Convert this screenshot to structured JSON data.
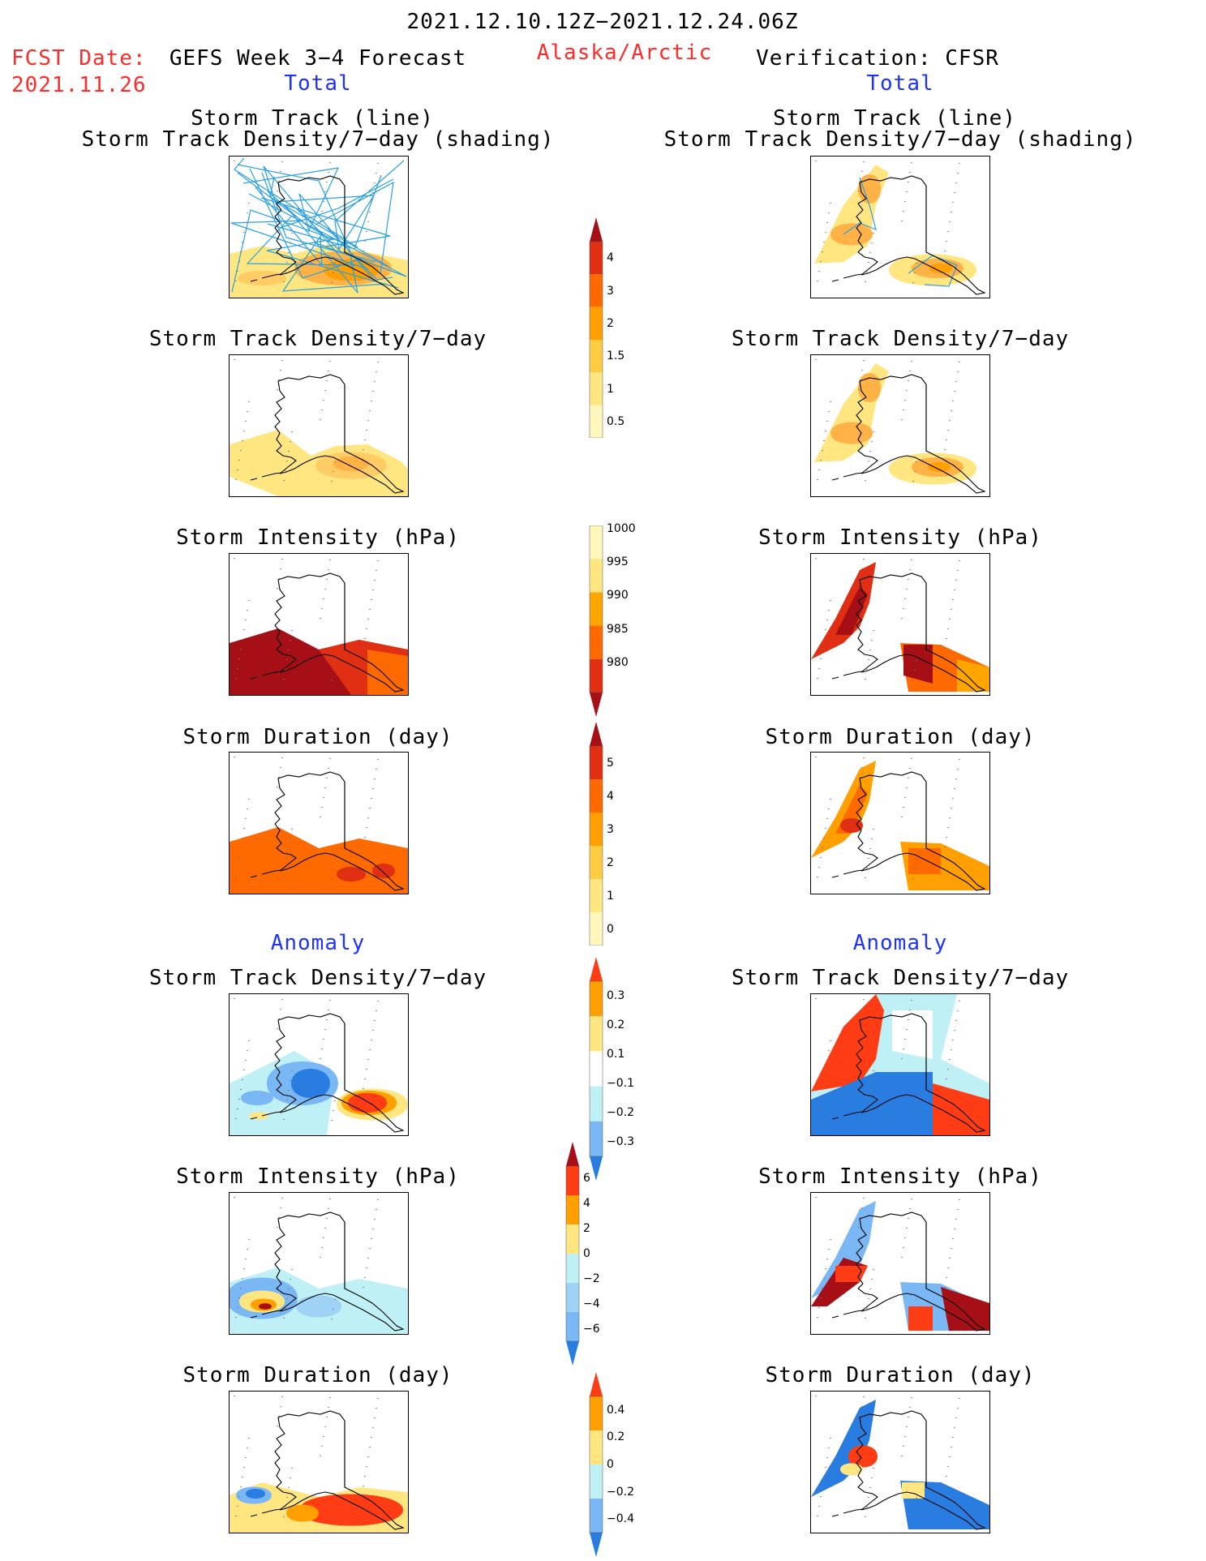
{
  "header": {
    "period": "2021.12.10.12Z−2021.12.24.06Z",
    "fcst_label": "FCST Date:",
    "fcst_date": "2021.11.26",
    "left_title": "GEFS Week 3−4 Forecast",
    "region": "Alaska/Arctic",
    "right_title": "Verification: CFSR"
  },
  "sections": {
    "total": "Total",
    "anomaly": "Anomaly"
  },
  "panel_titles": {
    "track_line": "Storm Track (line)",
    "track_shading": "Storm Track Density/7−day (shading)",
    "density": "Storm Track Density/7−day",
    "intensity": "Storm Intensity (hPa)",
    "duration": "Storm Duration (day)"
  },
  "colorbars": [
    {
      "id": "density_total",
      "ticks": [
        "4",
        "3",
        "2",
        "1.5",
        "1",
        "0.5"
      ],
      "colors": [
        "#a50f15",
        "#e02f12",
        "#ff6a00",
        "#ff9f00",
        "#ffcc44",
        "#ffe680",
        "#fff7bc"
      ],
      "extend": "max"
    },
    {
      "id": "intensity_total",
      "ticks": [
        "1000",
        "995",
        "990",
        "985",
        "980"
      ],
      "colors": [
        "#fff7bc",
        "#ffe680",
        "#ffa500",
        "#ff6a00",
        "#e02f12",
        "#a50f15"
      ],
      "extend": "min"
    },
    {
      "id": "duration_total",
      "ticks": [
        "5",
        "4",
        "3",
        "2",
        "1",
        "0"
      ],
      "colors": [
        "#a50f15",
        "#e02f12",
        "#ff6a00",
        "#ff9f00",
        "#ffcc44",
        "#ffe680",
        "#fff7bc"
      ],
      "extend": "max"
    },
    {
      "id": "density_anom",
      "ticks": [
        "0.3",
        "0.2",
        "0.1",
        "−0.1",
        "−0.2",
        "−0.3"
      ],
      "colors": [
        "#ff3c14",
        "#ff9f00",
        "#ffe680",
        "#ffffff",
        "#bff0f5",
        "#7ab8f5",
        "#2a7de0"
      ],
      "extend": "both"
    },
    {
      "id": "intensity_anom",
      "ticks": [
        "6",
        "4",
        "2",
        "0",
        "−2",
        "−4",
        "−6"
      ],
      "colors": [
        "#a50f15",
        "#ff3c14",
        "#ff9f00",
        "#ffe680",
        "#bff0f5",
        "#9fd3f5",
        "#7ab8f5",
        "#2a7de0"
      ],
      "extend": "both"
    },
    {
      "id": "duration_anom",
      "ticks": [
        "0.4",
        "0.2",
        "0",
        "−0.2",
        "−0.4"
      ],
      "colors": [
        "#ff3c14",
        "#ff9f00",
        "#ffe680",
        "#bff0f5",
        "#7ab8f5",
        "#2a7de0"
      ],
      "extend": "both"
    }
  ]
}
